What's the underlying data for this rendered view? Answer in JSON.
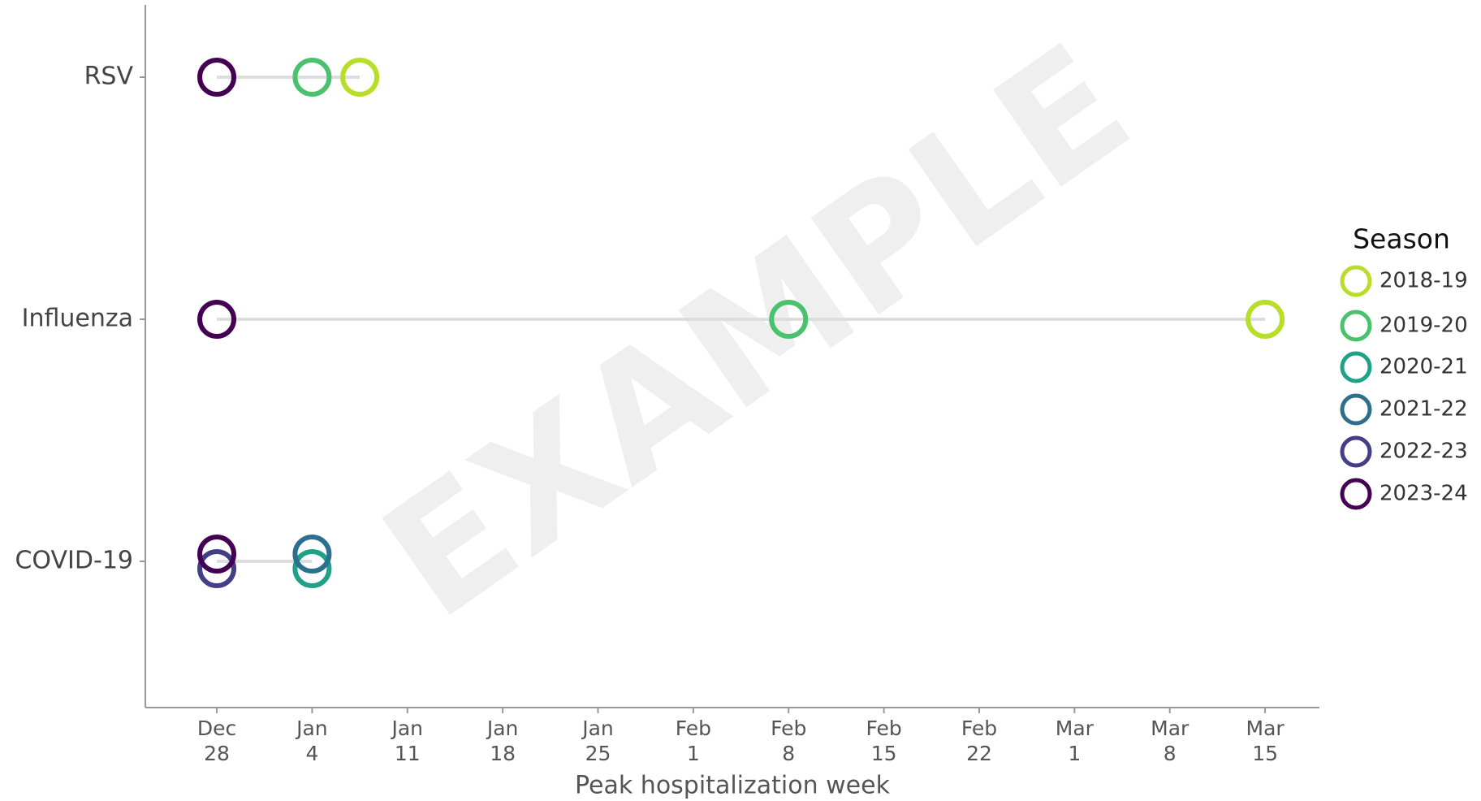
{
  "chart_data": {
    "type": "dotplot",
    "watermark": "EXAMPLE",
    "x_label": "Peak hospitalization week",
    "categories": [
      "RSV",
      "Influenza",
      "COVID-19"
    ],
    "legend_title": "Season",
    "xlim": [
      -0.75,
      11.57
    ],
    "xticks": [
      {
        "value": 0,
        "label": "Dec\n28"
      },
      {
        "value": 1,
        "label": "Jan\n4"
      },
      {
        "value": 2,
        "label": "Jan\n11"
      },
      {
        "value": 3,
        "label": "Jan\n18"
      },
      {
        "value": 4,
        "label": "Jan\n25"
      },
      {
        "value": 5,
        "label": "Feb\n1"
      },
      {
        "value": 6,
        "label": "Feb\n8"
      },
      {
        "value": 7,
        "label": "Feb\n15"
      },
      {
        "value": 8,
        "label": "Feb\n22"
      },
      {
        "value": 9,
        "label": "Mar\n1"
      },
      {
        "value": 10,
        "label": "Mar\n8"
      },
      {
        "value": 11,
        "label": "Mar\n15"
      }
    ],
    "series": [
      {
        "name": "2018-19",
        "color": "#b8de29",
        "values": [
          1.5,
          11,
          null
        ]
      },
      {
        "name": "2019-20",
        "color": "#4ac16d",
        "values": [
          1,
          6,
          null
        ]
      },
      {
        "name": "2020-21",
        "color": "#1fa187",
        "values": [
          null,
          null,
          1
        ]
      },
      {
        "name": "2021-22",
        "color": "#2d708e",
        "values": [
          null,
          null,
          1
        ]
      },
      {
        "name": "2022-23",
        "color": "#433e85",
        "values": [
          null,
          null,
          0
        ]
      },
      {
        "name": "2023-24",
        "color": "#440154",
        "values": [
          0,
          0,
          0
        ]
      }
    ]
  }
}
